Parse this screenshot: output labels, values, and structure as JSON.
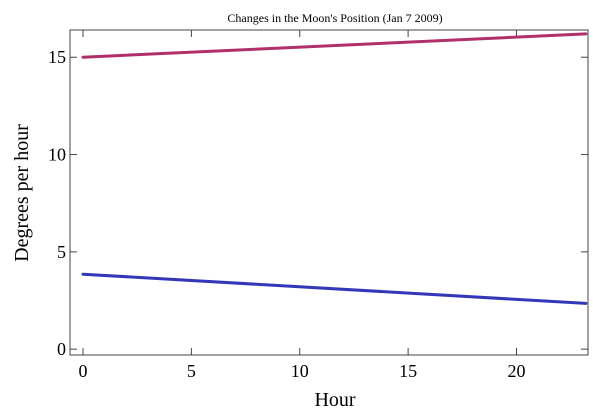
{
  "chart_data": {
    "type": "line",
    "title": "Changes in the Moon's Position (Jan 7 2009)",
    "xlabel": "Hour",
    "ylabel": "Degrees per hour",
    "xlim": [
      -0.6,
      23.3
    ],
    "ylim": [
      -0.3,
      16.4
    ],
    "xticks": [
      0,
      5,
      10,
      15,
      20
    ],
    "yticks": [
      0,
      5,
      10,
      15
    ],
    "grid": false,
    "legend": "none",
    "series": [
      {
        "color": "#b0306a",
        "x": [
          0,
          23.2
        ],
        "y": [
          15.0,
          16.2
        ]
      },
      {
        "color": "#3438b8",
        "x": [
          0,
          23.2
        ],
        "y": [
          3.85,
          2.35
        ]
      }
    ]
  }
}
